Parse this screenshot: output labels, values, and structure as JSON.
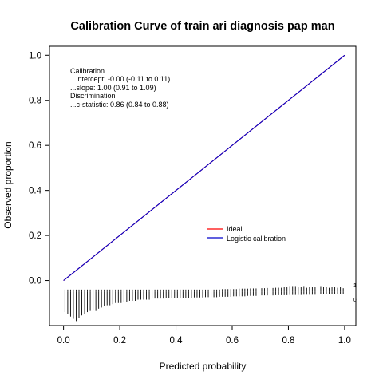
{
  "chart_data": {
    "type": "line",
    "title": "Calibration Curve of train ari diagnosis pap man",
    "xlabel": "Predicted probability",
    "ylabel": "Observed proportion",
    "xlim": [
      -0.05,
      1.04
    ],
    "ylim": [
      -0.2,
      1.04
    ],
    "x_ticks": [
      0.0,
      0.2,
      0.4,
      0.6,
      0.8,
      1.0
    ],
    "x_tick_labels": [
      "0.0",
      "0.2",
      "0.4",
      "0.6",
      "0.8",
      "1.0"
    ],
    "y_ticks": [
      0.0,
      0.2,
      0.4,
      0.6,
      0.8,
      1.0
    ],
    "y_tick_labels": [
      "0.0",
      "0.2",
      "0.4",
      "0.6",
      "0.8",
      "1.0"
    ],
    "grid": false,
    "series": [
      {
        "name": "Ideal",
        "color": "#ff0000",
        "x": [
          0,
          1
        ],
        "y": [
          0,
          1
        ]
      },
      {
        "name": "Logistic calibration",
        "color": "#0000cc",
        "x": [
          0,
          1
        ],
        "y": [
          0,
          1
        ]
      }
    ],
    "legend": {
      "position": "center-right",
      "entries": [
        "Ideal",
        "Logistic calibration"
      ]
    },
    "annotations": [
      "Calibration",
      "...intercept: -0.00 (-0.11 to 0.11)",
      "...slope: 1.00 (0.91 to 1.09)",
      "Discrimination",
      "...c-statistic: 0.86 (0.84 to 0.88)"
    ],
    "rug": {
      "label_top": "1",
      "label_bottom": "0",
      "baseline_y": -0.05,
      "x": [
        0.005,
        0.015,
        0.025,
        0.035,
        0.045,
        0.055,
        0.065,
        0.075,
        0.085,
        0.095,
        0.105,
        0.115,
        0.125,
        0.135,
        0.145,
        0.155,
        0.165,
        0.175,
        0.185,
        0.195,
        0.205,
        0.215,
        0.225,
        0.235,
        0.245,
        0.255,
        0.265,
        0.275,
        0.285,
        0.295,
        0.305,
        0.315,
        0.325,
        0.335,
        0.345,
        0.355,
        0.365,
        0.375,
        0.385,
        0.395,
        0.405,
        0.415,
        0.425,
        0.435,
        0.445,
        0.455,
        0.465,
        0.475,
        0.485,
        0.495,
        0.505,
        0.515,
        0.525,
        0.535,
        0.545,
        0.555,
        0.565,
        0.575,
        0.585,
        0.595,
        0.605,
        0.615,
        0.625,
        0.635,
        0.645,
        0.655,
        0.665,
        0.675,
        0.685,
        0.695,
        0.705,
        0.715,
        0.725,
        0.735,
        0.745,
        0.755,
        0.765,
        0.775,
        0.785,
        0.795,
        0.805,
        0.815,
        0.825,
        0.835,
        0.845,
        0.855,
        0.865,
        0.875,
        0.885,
        0.895,
        0.905,
        0.915,
        0.925,
        0.935,
        0.945,
        0.955,
        0.965,
        0.975,
        0.985,
        0.995
      ],
      "events": [
        0.01,
        0.01,
        0.01,
        0.01,
        0.01,
        0.01,
        0.01,
        0.01,
        0.01,
        0.01,
        0.01,
        0.01,
        0.01,
        0.01,
        0.01,
        0.01,
        0.01,
        0.01,
        0.01,
        0.01,
        0.01,
        0.01,
        0.01,
        0.01,
        0.01,
        0.01,
        0.01,
        0.01,
        0.01,
        0.01,
        0.01,
        0.01,
        0.01,
        0.01,
        0.01,
        0.01,
        0.01,
        0.01,
        0.01,
        0.01,
        0.01,
        0.01,
        0.01,
        0.01,
        0.01,
        0.01,
        0.01,
        0.01,
        0.01,
        0.01,
        0.01,
        0.01,
        0.01,
        0.01,
        0.01,
        0.01,
        0.012,
        0.012,
        0.012,
        0.012,
        0.012,
        0.012,
        0.014,
        0.014,
        0.014,
        0.014,
        0.015,
        0.015,
        0.015,
        0.016,
        0.016,
        0.016,
        0.017,
        0.017,
        0.017,
        0.018,
        0.018,
        0.018,
        0.02,
        0.02,
        0.022,
        0.022,
        0.022,
        0.02,
        0.02,
        0.022,
        0.018,
        0.02,
        0.02,
        0.02,
        0.02,
        0.022,
        0.02,
        0.02,
        0.018,
        0.02,
        0.02,
        0.018,
        0.02,
        0.016
      ],
      "nonevents": [
        0.09,
        0.1,
        0.11,
        0.12,
        0.13,
        0.115,
        0.105,
        0.1,
        0.09,
        0.085,
        0.08,
        0.085,
        0.075,
        0.07,
        0.065,
        0.06,
        0.06,
        0.055,
        0.05,
        0.05,
        0.05,
        0.045,
        0.045,
        0.04,
        0.04,
        0.04,
        0.035,
        0.035,
        0.035,
        0.035,
        0.035,
        0.03,
        0.03,
        0.03,
        0.03,
        0.03,
        0.028,
        0.028,
        0.028,
        0.028,
        0.028,
        0.026,
        0.026,
        0.026,
        0.026,
        0.026,
        0.025,
        0.025,
        0.025,
        0.025,
        0.024,
        0.024,
        0.024,
        0.024,
        0.024,
        0.022,
        0.022,
        0.022,
        0.022,
        0.022,
        0.02,
        0.02,
        0.02,
        0.02,
        0.02,
        0.018,
        0.018,
        0.018,
        0.018,
        0.018,
        0.016,
        0.016,
        0.016,
        0.016,
        0.016,
        0.015,
        0.015,
        0.015,
        0.015,
        0.015,
        0.014,
        0.014,
        0.014,
        0.014,
        0.014,
        0.013,
        0.013,
        0.013,
        0.013,
        0.013,
        0.012,
        0.012,
        0.012,
        0.012,
        0.012,
        0.011,
        0.011,
        0.011,
        0.011,
        0.011
      ]
    }
  }
}
